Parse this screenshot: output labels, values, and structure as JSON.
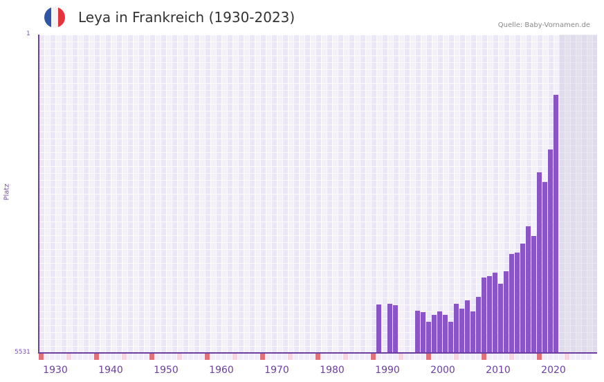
{
  "header": {
    "title": "Leya in Frankreich (1930-2023)",
    "source": "Quelle: Baby-Vornamen.de",
    "flag_colors": [
      "#2f55a4",
      "#f4f4f4",
      "#e5333b"
    ]
  },
  "colors": {
    "bar": "#8a55c7",
    "axis": "#6b3fa0",
    "decade_marker": "#e0707a",
    "half_decade_marker": "#f5d5de"
  },
  "chart_data": {
    "type": "bar",
    "title": "Leya in Frankreich (1930-2023)",
    "xlabel": "",
    "ylabel": "Platz",
    "y_inverted": true,
    "ylim": [
      5531,
      1
    ],
    "y_ticks": [
      "1",
      "5531"
    ],
    "x_ticks": [
      "1930",
      "1940",
      "1950",
      "1960",
      "1970",
      "1980",
      "1990",
      "2000",
      "2010",
      "2020"
    ],
    "xrange": [
      1929,
      2029
    ],
    "shaded_future_from": 2023,
    "categories": [
      1990,
      1992,
      1993,
      1997,
      1998,
      1999,
      2000,
      2001,
      2002,
      2003,
      2004,
      2005,
      2006,
      2007,
      2008,
      2009,
      2010,
      2011,
      2012,
      2013,
      2014,
      2015,
      2016,
      2017,
      2018,
      2019,
      2020,
      2021,
      2022
    ],
    "values": [
      847,
      859,
      835,
      739,
      715,
      547,
      667,
      727,
      667,
      547,
      859,
      775,
      919,
      727,
      979,
      1316,
      1340,
      1400,
      1208,
      1424,
      1725,
      1749,
      1905,
      2206,
      2038,
      3144,
      2964,
      3541,
      4479
    ]
  },
  "axis": {
    "ylabel": "Platz",
    "ytop": "1",
    "ybottom": "5531"
  }
}
